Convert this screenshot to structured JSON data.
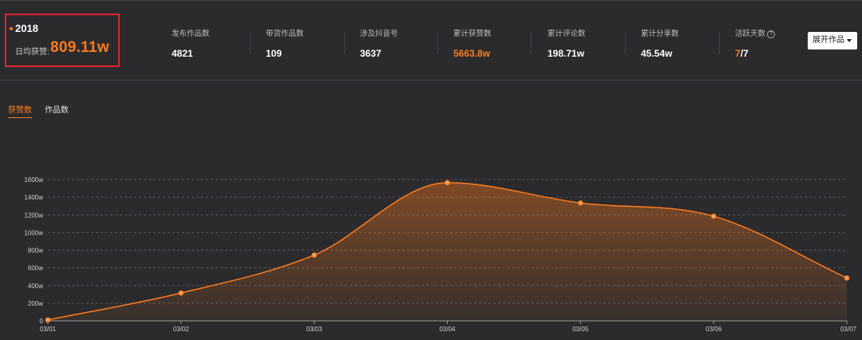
{
  "summary": {
    "year": "2018",
    "avg_label": "日均获赞:",
    "avg_value": "809.11w"
  },
  "stats": [
    {
      "label": "发布作品数",
      "value": "4821"
    },
    {
      "label": "带货作品数",
      "value": "109"
    },
    {
      "label": "涉及抖音号",
      "value": "3637"
    },
    {
      "label": "累计获赞数",
      "value": "5663.8w"
    },
    {
      "label": "累计评论数",
      "value": "198.71w"
    },
    {
      "label": "累计分享数",
      "value": "45.54w"
    }
  ],
  "active_days": {
    "label": "活跃天数",
    "help_icon": "?",
    "current": "7",
    "total": "/7"
  },
  "expand_button": {
    "label": "展开作品",
    "icon": "caret-down-icon"
  },
  "tabs": [
    {
      "label": "获赞数",
      "active": true
    },
    {
      "label": "作品数",
      "active": false
    }
  ],
  "colors": {
    "accent": "#ff7a1a",
    "background": "#2b2b2e",
    "highlight_box": "#e0242c"
  },
  "chart_data": {
    "type": "area",
    "x": [
      "03/01",
      "03/02",
      "03/03",
      "03/04",
      "03/05",
      "03/06",
      "03/07"
    ],
    "series": [
      {
        "values": [
          10,
          315,
          745,
          1565,
          1335,
          1185,
          485
        ]
      }
    ],
    "y_ticks": [
      "0",
      "200w",
      "400w",
      "600w",
      "800w",
      "1000w",
      "1200w",
      "1400w",
      "1600w"
    ],
    "ylim": [
      0,
      1600
    ],
    "grid": true,
    "smooth": true
  }
}
